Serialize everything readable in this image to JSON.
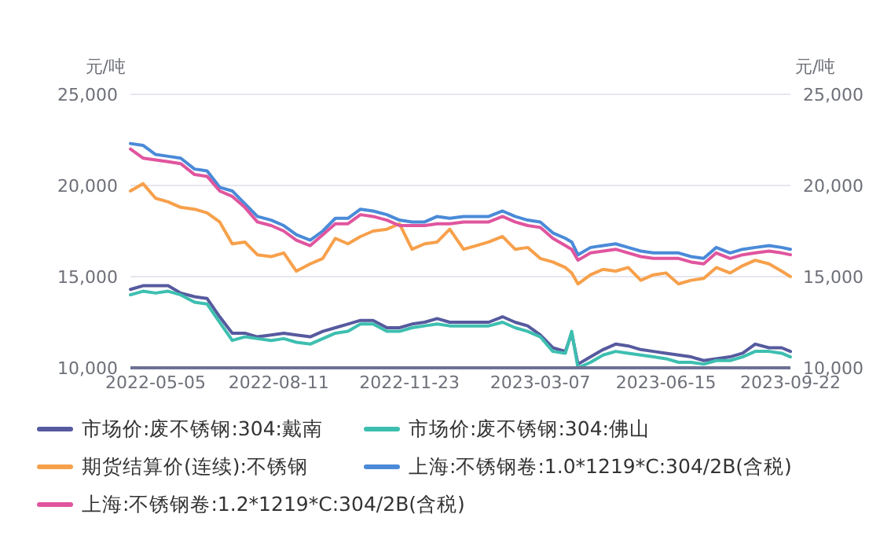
{
  "chart_data": {
    "type": "line",
    "ylabel": "元/吨",
    "y2label": "元/吨",
    "x": [
      "2022-04-15",
      "2022-04-25",
      "2022-05-05",
      "2022-05-15",
      "2022-05-25",
      "2022-06-05",
      "2022-06-15",
      "2022-06-25",
      "2022-07-05",
      "2022-07-15",
      "2022-07-25",
      "2022-08-05",
      "2022-08-15",
      "2022-08-25",
      "2022-09-05",
      "2022-09-15",
      "2022-09-25",
      "2022-10-05",
      "2022-10-15",
      "2022-10-25",
      "2022-11-05",
      "2022-11-15",
      "2022-11-25",
      "2022-12-05",
      "2022-12-15",
      "2022-12-25",
      "2023-01-05",
      "2023-01-15",
      "2023-01-25",
      "2023-02-05",
      "2023-02-15",
      "2023-02-25",
      "2023-03-07",
      "2023-03-17",
      "2023-03-27",
      "2023-04-01",
      "2023-04-06",
      "2023-04-16",
      "2023-04-26",
      "2023-05-06",
      "2023-05-16",
      "2023-05-26",
      "2023-06-05",
      "2023-06-15",
      "2023-06-25",
      "2023-07-05",
      "2023-07-15",
      "2023-07-25",
      "2023-08-05",
      "2023-08-15",
      "2023-08-25",
      "2023-09-05",
      "2023-09-15",
      "2023-09-22"
    ],
    "series": [
      {
        "name": "市场价:废不锈钢:304:戴南",
        "color": "#565a9e",
        "values": [
          14300,
          14500,
          14500,
          14500,
          14100,
          13900,
          13800,
          12800,
          11900,
          11900,
          11700,
          11800,
          11900,
          11800,
          11700,
          12000,
          12200,
          12400,
          12600,
          12600,
          12200,
          12200,
          12400,
          12500,
          12700,
          12500,
          12500,
          12500,
          12500,
          12800,
          12500,
          12300,
          11800,
          11100,
          10900,
          11900,
          10200,
          10600,
          11000,
          11300,
          11200,
          11000,
          10900,
          10800,
          10700,
          10600,
          10400,
          10500,
          10600,
          10800,
          11300,
          11100,
          11100,
          10900
        ]
      },
      {
        "name": "市场价:废不锈钢:304:佛山",
        "color": "#3dbfb0",
        "values": [
          14000,
          14200,
          14100,
          14200,
          14000,
          13600,
          13500,
          12500,
          11500,
          11700,
          11600,
          11500,
          11600,
          11400,
          11300,
          11600,
          11900,
          12000,
          12400,
          12400,
          12000,
          12000,
          12200,
          12300,
          12400,
          12300,
          12300,
          12300,
          12300,
          12500,
          12200,
          12000,
          11700,
          10900,
          10800,
          12000,
          10000,
          10300,
          10700,
          10900,
          10800,
          10700,
          10600,
          10500,
          10300,
          10300,
          10200,
          10400,
          10400,
          10600,
          10900,
          10900,
          10800,
          10600
        ]
      },
      {
        "name": "期货结算价(连续):不锈钢",
        "color": "#f7a04b",
        "values": [
          19700,
          20100,
          19300,
          19100,
          18800,
          18700,
          18500,
          18000,
          16800,
          16900,
          16200,
          16100,
          16300,
          15300,
          15700,
          16000,
          17100,
          16800,
          17200,
          17500,
          17600,
          17900,
          16500,
          16800,
          16900,
          17600,
          16500,
          16700,
          16900,
          17200,
          16500,
          16600,
          16000,
          15800,
          15500,
          15200,
          14600,
          15100,
          15400,
          15300,
          15500,
          14800,
          15100,
          15200,
          14600,
          14800,
          14900,
          15500,
          15200,
          15600,
          15900,
          15700,
          15300,
          15000
        ]
      },
      {
        "name": "上海:不锈钢卷:1.0*1219*C:304/2B(含税)",
        "color": "#4a8ad8",
        "values": [
          22300,
          22200,
          21700,
          21600,
          21500,
          20900,
          20800,
          19900,
          19700,
          19000,
          18300,
          18100,
          17800,
          17300,
          17000,
          17500,
          18200,
          18200,
          18700,
          18600,
          18400,
          18100,
          18000,
          18000,
          18300,
          18200,
          18300,
          18300,
          18300,
          18600,
          18300,
          18100,
          18000,
          17400,
          17100,
          16900,
          16200,
          16600,
          16700,
          16800,
          16600,
          16400,
          16300,
          16300,
          16300,
          16100,
          16000,
          16600,
          16300,
          16500,
          16600,
          16700,
          16600,
          16500
        ]
      },
      {
        "name": "上海:不锈钢卷:1.2*1219*C:304/2B(含税)",
        "color": "#e0559e",
        "values": [
          22000,
          21500,
          21400,
          21300,
          21200,
          20600,
          20500,
          19700,
          19400,
          18800,
          18000,
          17800,
          17500,
          17000,
          16700,
          17300,
          17900,
          17900,
          18400,
          18300,
          18100,
          17800,
          17800,
          17800,
          17900,
          17900,
          18000,
          18000,
          18000,
          18300,
          18000,
          17800,
          17700,
          17100,
          16700,
          16500,
          15900,
          16300,
          16400,
          16500,
          16300,
          16100,
          16000,
          16000,
          16000,
          15800,
          15700,
          16300,
          16000,
          16200,
          16300,
          16400,
          16300,
          16200
        ]
      }
    ],
    "xlim": [
      "2022-04-15",
      "2023-09-22"
    ],
    "xticks": [
      "2022-05-05",
      "2022-08-11",
      "2022-11-23",
      "2023-03-07",
      "2023-06-15",
      "2023-09-22"
    ],
    "ylim": [
      10000,
      25000
    ],
    "yticks": [
      {
        "value": 10000,
        "label": "10,000"
      },
      {
        "value": 15000,
        "label": "15,000"
      },
      {
        "value": 20000,
        "label": "20,000"
      },
      {
        "value": 25000,
        "label": "25,000"
      }
    ],
    "y2lim": [
      10000,
      25000
    ],
    "y2ticks": [
      {
        "value": 10000,
        "label": "10,000"
      },
      {
        "value": 15000,
        "label": "15,000"
      },
      {
        "value": 20000,
        "label": "20,000"
      },
      {
        "value": 25000,
        "label": "25,000"
      }
    ],
    "grid": "y",
    "legend": "bottom",
    "marker": "none",
    "line_style": "solid"
  }
}
